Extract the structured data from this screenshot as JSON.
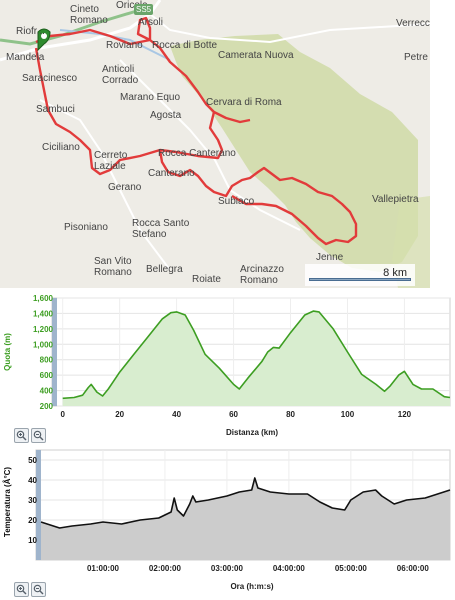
{
  "map": {
    "labels": [
      {
        "id": "oricola",
        "text": "Oricola"
      },
      {
        "id": "cineto-romano",
        "text": "Cineto\nRomano"
      },
      {
        "id": "arsoli",
        "text": "Arsoli"
      },
      {
        "id": "ss5",
        "text": "SS5"
      },
      {
        "id": "riofreddo",
        "text": "Riofr..."
      },
      {
        "id": "verrecchie",
        "text": "Verrecc"
      },
      {
        "id": "roviano",
        "text": "Roviano"
      },
      {
        "id": "rocca-di-botte",
        "text": "Rocca di Botte"
      },
      {
        "id": "mandela",
        "text": "Mandela"
      },
      {
        "id": "camerata-nuova",
        "text": "Camerata Nuova"
      },
      {
        "id": "petrella",
        "text": "Petre"
      },
      {
        "id": "saracinesco",
        "text": "Saracinesco"
      },
      {
        "id": "anticoli-corrado",
        "text": "Anticoli\nCorrado"
      },
      {
        "id": "marano-equo",
        "text": "Marano Equo"
      },
      {
        "id": "cervara-di-roma",
        "text": "Cervara di Roma"
      },
      {
        "id": "sambuci",
        "text": "Sambuci"
      },
      {
        "id": "agosta",
        "text": "Agosta"
      },
      {
        "id": "ciciliano",
        "text": "Ciciliano"
      },
      {
        "id": "rocca-canterano",
        "text": "Rocca Canterano"
      },
      {
        "id": "cerreto-laziale",
        "text": "Cerreto\nLaziale"
      },
      {
        "id": "canterano",
        "text": "Canterano"
      },
      {
        "id": "vallepietra",
        "text": "Vallepietra"
      },
      {
        "id": "gerano",
        "text": "Gerano"
      },
      {
        "id": "subiaco",
        "text": "Subiaco"
      },
      {
        "id": "pisoniano",
        "text": "Pisoniano"
      },
      {
        "id": "rocca-santo-stefano",
        "text": "Rocca Santo\nStefano"
      },
      {
        "id": "jenne",
        "text": "Jenne"
      },
      {
        "id": "san-vito-romano",
        "text": "San Vito\nRomano"
      },
      {
        "id": "bellegra",
        "text": "Bellegra"
      },
      {
        "id": "roiate",
        "text": "Roiate"
      },
      {
        "id": "arcinazzo-romano",
        "text": "Arcinazzo\nRomano"
      }
    ],
    "scale": "8 km",
    "route_color": "#e23b3b",
    "park_color": "#cfdaa6"
  },
  "elevation_chart": {
    "ylabel": "Quota (m)",
    "xlabel": "Distanza (km)",
    "color": "#3d9e22",
    "fill": "#d8edcf"
  },
  "temperature_chart": {
    "ylabel": "Temperatura (Â°C)",
    "xlabel": "Ora (h:m:s)",
    "color": "#111111",
    "fill": "#cccccc"
  },
  "chart_data": [
    {
      "type": "area",
      "title": "",
      "xlabel": "Distanza (km)",
      "ylabel": "Quota (m)",
      "x_ticks": [
        "0",
        "20",
        "40",
        "60",
        "80",
        "100",
        "120"
      ],
      "y_ticks": [
        "200",
        "400",
        "600",
        "800",
        "1,000",
        "1,200",
        "1,400",
        "1,600"
      ],
      "xlim": [
        -2,
        136
      ],
      "ylim": [
        200,
        1600
      ],
      "x": [
        0,
        4,
        7,
        9,
        10,
        12,
        14,
        16,
        20,
        25,
        30,
        35,
        38,
        40,
        43,
        46,
        50,
        55,
        60,
        62,
        65,
        70,
        72,
        74,
        76,
        80,
        85,
        88,
        90,
        95,
        100,
        105,
        110,
        113,
        115,
        118,
        120,
        123,
        126,
        130,
        134,
        136
      ],
      "values": [
        300,
        310,
        340,
        440,
        480,
        380,
        330,
        420,
        640,
        870,
        1100,
        1330,
        1410,
        1420,
        1380,
        1180,
        870,
        690,
        480,
        420,
        560,
        780,
        900,
        960,
        950,
        1150,
        1380,
        1430,
        1420,
        1200,
        900,
        610,
        480,
        390,
        460,
        600,
        650,
        480,
        420,
        420,
        320,
        310
      ],
      "grid": true
    },
    {
      "type": "area",
      "title": "",
      "xlabel": "Ora (h:m:s)",
      "ylabel": "Temperatura (Â°C)",
      "x_ticks": [
        "01:00:00",
        "02:00:00",
        "03:00:00",
        "04:00:00",
        "05:00:00",
        "06:00:00"
      ],
      "y_ticks": [
        "10",
        "20",
        "30",
        "40",
        "50"
      ],
      "xlim": [
        0,
        6.6
      ],
      "ylim": [
        0,
        55
      ],
      "x": [
        0,
        0.1,
        0.3,
        0.5,
        0.8,
        1.0,
        1.3,
        1.6,
        1.9,
        2.1,
        2.15,
        2.2,
        2.3,
        2.4,
        2.45,
        2.5,
        2.7,
        3.0,
        3.2,
        3.4,
        3.45,
        3.5,
        3.7,
        4.0,
        4.3,
        4.5,
        4.7,
        4.9,
        5.0,
        5.2,
        5.4,
        5.5,
        5.7,
        5.9,
        6.2,
        6.4,
        6.5,
        6.6
      ],
      "values": [
        19,
        18,
        16,
        17,
        18,
        19,
        18,
        20,
        21,
        24,
        31,
        25,
        22,
        28,
        32,
        29,
        30,
        32,
        34,
        35,
        41,
        36,
        34,
        33,
        33,
        29,
        26,
        25,
        30,
        34,
        35,
        32,
        28,
        30,
        31,
        33,
        34,
        35
      ],
      "grid": true
    }
  ]
}
